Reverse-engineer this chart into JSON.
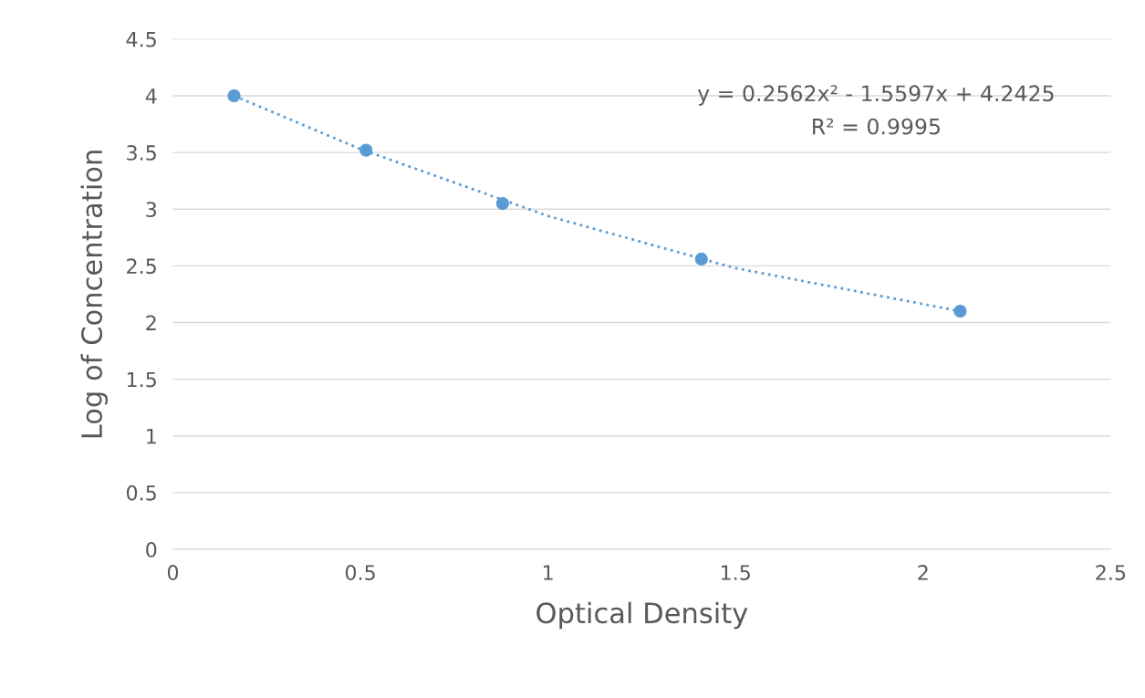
{
  "chart_data": {
    "type": "scatter",
    "xlabel": "Optical Density",
    "ylabel": "Log of Concentration",
    "series": [
      {
        "color": "#5b9bd5",
        "marker": "circle",
        "x": [
          0.163,
          0.515,
          0.879,
          1.409,
          2.099
        ],
        "values": [
          4.0,
          3.52,
          3.05,
          2.56,
          2.1
        ]
      },
      {
        "type": "line",
        "color": "#5b9bd5",
        "line_style": "dotted",
        "marker": "none",
        "x": [
          0.163,
          0.5,
          1.0,
          1.5,
          2.099
        ],
        "values": [
          4.0,
          3.53,
          2.94,
          2.48,
          2.1
        ]
      }
    ],
    "annotations": [
      "y = 0.2562x² - 1.5597x + 4.2425",
      "R² = 0.9995"
    ],
    "xlim": [
      0,
      2.5
    ],
    "xticks": [
      0,
      0.5,
      1,
      1.5,
      2,
      2.5
    ],
    "ylim": [
      0,
      4.5
    ],
    "yticks": [
      0,
      0.5,
      1,
      1.5,
      2,
      2.5,
      3,
      3.5,
      4,
      4.5
    ],
    "grid": "y",
    "legend": false
  }
}
